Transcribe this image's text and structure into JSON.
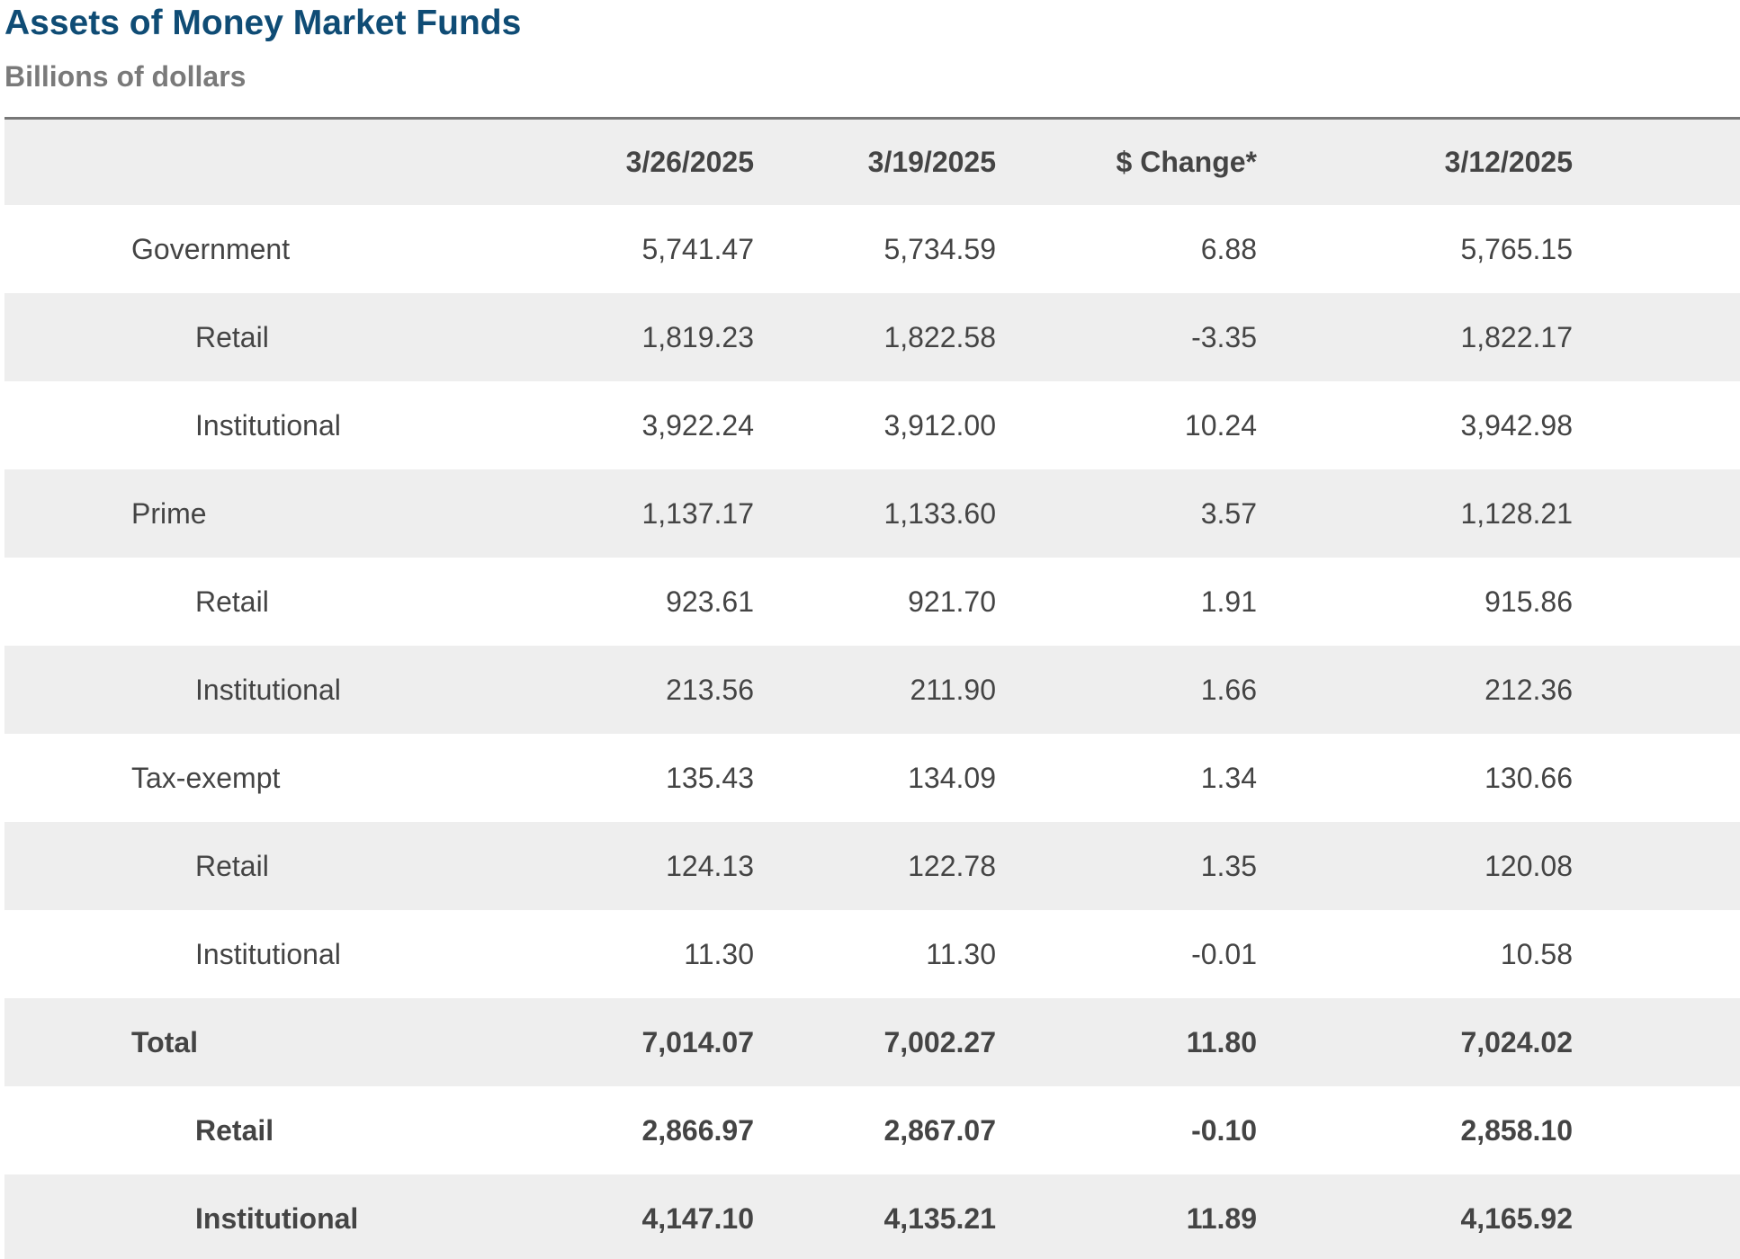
{
  "title": "Assets of Money Market Funds",
  "subtitle": "Billions of dollars",
  "table": {
    "columns": [
      "",
      "3/26/2025",
      "3/19/2025",
      "$ Change*",
      "3/12/2025"
    ],
    "rows": [
      {
        "label": "Government",
        "indent": false,
        "bold": false,
        "values": [
          "5,741.47",
          "5,734.59",
          "6.88",
          "5,765.15"
        ]
      },
      {
        "label": "Retail",
        "indent": true,
        "bold": false,
        "values": [
          "1,819.23",
          "1,822.58",
          "-3.35",
          "1,822.17"
        ]
      },
      {
        "label": "Institutional",
        "indent": true,
        "bold": false,
        "values": [
          "3,922.24",
          "3,912.00",
          "10.24",
          "3,942.98"
        ]
      },
      {
        "label": "Prime",
        "indent": false,
        "bold": false,
        "values": [
          "1,137.17",
          "1,133.60",
          "3.57",
          "1,128.21"
        ]
      },
      {
        "label": "Retail",
        "indent": true,
        "bold": false,
        "values": [
          "923.61",
          "921.70",
          "1.91",
          "915.86"
        ]
      },
      {
        "label": "Institutional",
        "indent": true,
        "bold": false,
        "values": [
          "213.56",
          "211.90",
          "1.66",
          "212.36"
        ]
      },
      {
        "label": "Tax-exempt",
        "indent": false,
        "bold": false,
        "values": [
          "135.43",
          "134.09",
          "1.34",
          "130.66"
        ]
      },
      {
        "label": "Retail",
        "indent": true,
        "bold": false,
        "values": [
          "124.13",
          "122.78",
          "1.35",
          "120.08"
        ]
      },
      {
        "label": "Institutional",
        "indent": true,
        "bold": false,
        "values": [
          "11.30",
          "11.30",
          "-0.01",
          "10.58"
        ]
      },
      {
        "label": "Total",
        "indent": false,
        "bold": true,
        "values": [
          "7,014.07",
          "7,002.27",
          "11.80",
          "7,024.02"
        ]
      },
      {
        "label": "Retail",
        "indent": true,
        "bold": true,
        "values": [
          "2,866.97",
          "2,867.07",
          "-0.10",
          "2,858.10"
        ]
      },
      {
        "label": "Institutional",
        "indent": true,
        "bold": true,
        "values": [
          "4,147.10",
          "4,135.21",
          "11.89",
          "4,165.92"
        ]
      }
    ]
  },
  "colors": {
    "title": "#0f4c75",
    "subtitle": "#7a7a7a",
    "row_shade": "#eeeeee",
    "text": "#444444"
  }
}
